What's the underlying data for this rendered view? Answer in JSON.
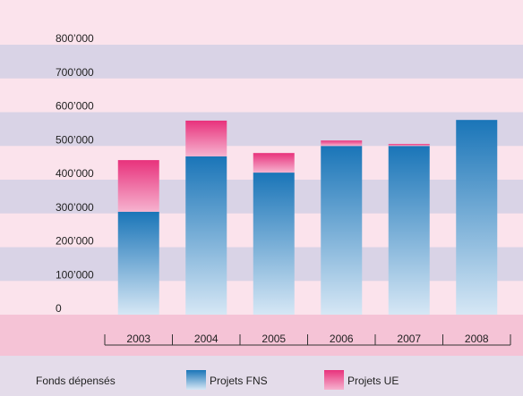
{
  "chart_data": {
    "type": "stacked_bar",
    "categories": [
      "2003",
      "2004",
      "2005",
      "2006",
      "2007",
      "2008"
    ],
    "series": [
      {
        "name": "Projets FNS",
        "color": "#1a75b8",
        "values": [
          305000,
          469000,
          421000,
          500000,
          500000,
          577000
        ]
      },
      {
        "name": "Projets UE",
        "color": "#e8327c",
        "values": [
          153000,
          106000,
          58000,
          16000,
          6000,
          0
        ]
      }
    ],
    "ylim": [
      0,
      800000
    ],
    "yticks": [
      0,
      {
        "value": 100000,
        "label": "100’000"
      },
      {
        "value": 200000,
        "label": "200’000"
      },
      {
        "value": 300000,
        "label": "300’000"
      },
      {
        "value": 400000,
        "label": "400’000"
      },
      {
        "value": 500000,
        "label": "500’000"
      },
      {
        "value": 600000,
        "label": "600’000"
      },
      {
        "value": 700000,
        "label": "700’000"
      },
      {
        "value": 800000,
        "label": "800’000"
      }
    ],
    "legend_title": "Fonds dépensés",
    "legend_position": "bottom"
  }
}
